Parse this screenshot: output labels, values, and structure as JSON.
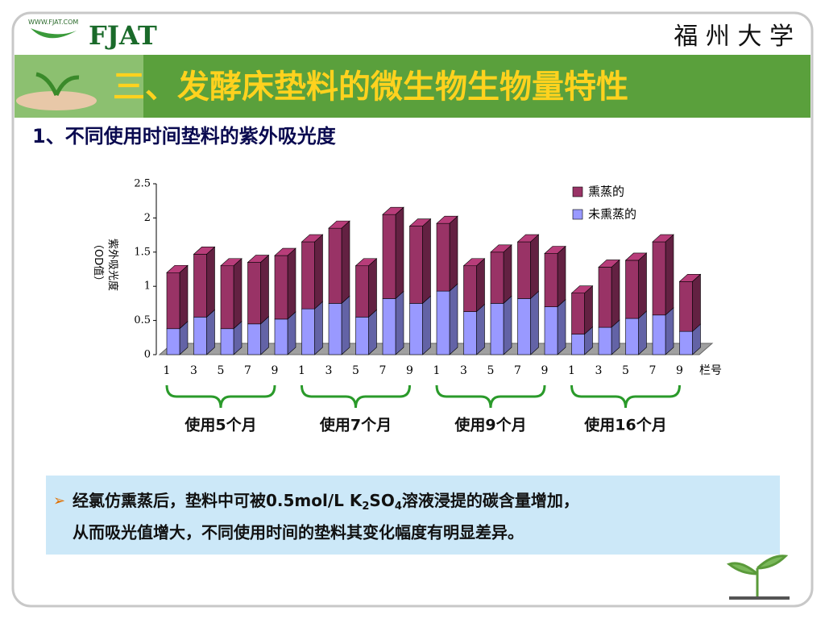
{
  "header": {
    "logo": "FJAT",
    "logo_url": "WWW.FJAT.COM",
    "university": "福 州 大 学",
    "title": "三、发酵床垫料的微生物生物量特性"
  },
  "subtitle": "1、不同使用时间垫料的紫外吸光度",
  "chart_data": {
    "type": "bar3d_stacked",
    "y_label": [
      "紫外吸光度",
      "（OD值）"
    ],
    "x_label": "栏号",
    "categories": [
      "1",
      "3",
      "5",
      "7",
      "9",
      "1",
      "3",
      "5",
      "7",
      "9",
      "1",
      "3",
      "5",
      "7",
      "9",
      "1",
      "3",
      "5",
      "7",
      "9"
    ],
    "series": [
      {
        "name": "未熏蒸的",
        "color": "#9999ff",
        "values": [
          0.38,
          0.55,
          0.38,
          0.45,
          0.52,
          0.67,
          0.75,
          0.55,
          0.82,
          0.75,
          0.93,
          0.63,
          0.75,
          0.82,
          0.7,
          0.3,
          0.4,
          0.53,
          0.58,
          0.34
        ]
      },
      {
        "name": "熏蒸的",
        "color": "#993366",
        "values": [
          0.82,
          0.92,
          0.92,
          0.9,
          0.93,
          0.98,
          1.1,
          0.75,
          1.23,
          1.13,
          0.99,
          0.67,
          0.75,
          0.83,
          0.78,
          0.6,
          0.88,
          0.85,
          1.07,
          0.73
        ]
      }
    ],
    "ylim": [
      0,
      2.5
    ],
    "yticks": [
      0,
      0.5,
      1,
      1.5,
      2,
      2.5
    ],
    "groups": [
      "使用5个月",
      "使用7个月",
      "使用9个月",
      "使用16个月"
    ]
  },
  "note": {
    "line1": [
      "经氯仿熏蒸后，垫料中可被0.5mol/L K",
      "2",
      "SO",
      "4",
      "溶液浸提的碳含量增加，"
    ],
    "line2": "从而吸光值增大，不同使用时间的垫料其变化幅度有明显差异。"
  }
}
